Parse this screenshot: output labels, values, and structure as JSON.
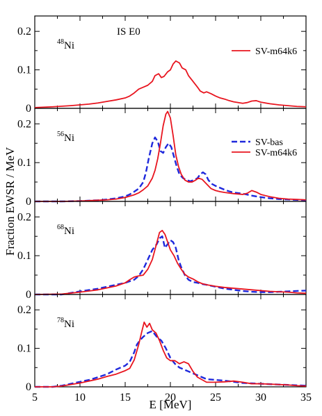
{
  "figure": {
    "ylabel": "Fraction EWSR / MeV",
    "xlabel": "E [MeV]",
    "x_ticks": [
      "5",
      "10",
      "15",
      "20",
      "25",
      "30",
      "35"
    ],
    "y_ticks": [
      "0",
      "0.1",
      "0.2"
    ],
    "annotation": "IS E0"
  },
  "chart_data": [
    {
      "type": "line",
      "nucleus": {
        "mass": "48",
        "element": "Ni"
      },
      "xlim": [
        5,
        35
      ],
      "ylim": [
        0,
        0.24
      ],
      "legend_placement": "top-right",
      "series": [
        {
          "name": "SV-m64k6",
          "color": "#e8141e",
          "style": "solid",
          "legend": true,
          "x": [
            5,
            7,
            9,
            10,
            11,
            12,
            13,
            14,
            15,
            15.5,
            16,
            16.5,
            17,
            17.5,
            18,
            18.3,
            18.7,
            19,
            19.3,
            19.7,
            20,
            20.3,
            20.6,
            21,
            21.3,
            21.7,
            22,
            22.5,
            23,
            23.3,
            23.7,
            24,
            24.5,
            25,
            25.5,
            26,
            26.5,
            27,
            28,
            28.5,
            29,
            29.5,
            30,
            31,
            32,
            33,
            34,
            35
          ],
          "y": [
            0.002,
            0.004,
            0.007,
            0.009,
            0.011,
            0.014,
            0.018,
            0.022,
            0.027,
            0.032,
            0.04,
            0.05,
            0.055,
            0.06,
            0.07,
            0.085,
            0.09,
            0.08,
            0.083,
            0.095,
            0.1,
            0.115,
            0.123,
            0.118,
            0.105,
            0.1,
            0.085,
            0.07,
            0.055,
            0.045,
            0.04,
            0.043,
            0.038,
            0.032,
            0.027,
            0.024,
            0.02,
            0.017,
            0.013,
            0.015,
            0.019,
            0.02,
            0.016,
            0.012,
            0.009,
            0.007,
            0.005,
            0.004
          ]
        }
      ]
    },
    {
      "type": "line",
      "nucleus": {
        "mass": "56",
        "element": "Ni"
      },
      "xlim": [
        5,
        35
      ],
      "ylim": [
        0,
        0.24
      ],
      "legend_placement": "right",
      "series": [
        {
          "name": "SV-bas",
          "color": "#1e28dc",
          "style": "dashed",
          "legend": true,
          "x": [
            5,
            8,
            10,
            12,
            13,
            14,
            15,
            15.5,
            16,
            16.5,
            17,
            17.3,
            17.6,
            18,
            18.3,
            18.6,
            18.9,
            19.2,
            19.5,
            19.8,
            20.1,
            20.4,
            20.7,
            21,
            21.4,
            21.8,
            22.2,
            22.6,
            23,
            23.3,
            23.6,
            23.9,
            24.2,
            24.6,
            25,
            25.5,
            26,
            26.5,
            27,
            28,
            29,
            30,
            31,
            32,
            33,
            34,
            35
          ],
          "y": [
            0,
            0,
            0.001,
            0.003,
            0.005,
            0.008,
            0.013,
            0.018,
            0.025,
            0.033,
            0.05,
            0.075,
            0.11,
            0.15,
            0.165,
            0.155,
            0.13,
            0.125,
            0.14,
            0.15,
            0.14,
            0.115,
            0.09,
            0.07,
            0.06,
            0.055,
            0.052,
            0.055,
            0.06,
            0.07,
            0.075,
            0.07,
            0.055,
            0.045,
            0.04,
            0.035,
            0.03,
            0.026,
            0.023,
            0.02,
            0.015,
            0.011,
            0.008,
            0.006,
            0.005,
            0.004,
            0.003
          ]
        },
        {
          "name": "SV-m64k6",
          "color": "#e8141e",
          "style": "solid",
          "legend": true,
          "x": [
            5,
            8,
            10,
            12,
            13,
            14,
            15,
            16,
            16.5,
            17,
            17.5,
            18,
            18.3,
            18.6,
            18.9,
            19.2,
            19.5,
            19.7,
            20,
            20.3,
            20.6,
            20.9,
            21.2,
            21.6,
            22,
            22.4,
            22.8,
            23.1,
            23.5,
            24,
            24.5,
            25,
            25.5,
            26,
            27,
            28,
            28.5,
            29,
            29.5,
            30,
            31,
            32,
            33,
            34,
            35
          ],
          "y": [
            0,
            0,
            0.001,
            0.003,
            0.004,
            0.006,
            0.01,
            0.017,
            0.022,
            0.03,
            0.04,
            0.06,
            0.08,
            0.11,
            0.15,
            0.195,
            0.225,
            0.232,
            0.215,
            0.17,
            0.12,
            0.09,
            0.07,
            0.055,
            0.05,
            0.05,
            0.055,
            0.06,
            0.057,
            0.045,
            0.033,
            0.028,
            0.025,
            0.023,
            0.02,
            0.018,
            0.021,
            0.028,
            0.024,
            0.018,
            0.012,
            0.008,
            0.006,
            0.005,
            0.004
          ]
        }
      ]
    },
    {
      "type": "line",
      "nucleus": {
        "mass": "68",
        "element": "Ni"
      },
      "xlim": [
        5,
        35
      ],
      "ylim": [
        0,
        0.24
      ],
      "series": [
        {
          "name": "SV-bas",
          "color": "#1e28dc",
          "style": "dashed",
          "legend": false,
          "x": [
            5,
            8,
            10,
            12,
            13,
            14,
            15,
            16,
            16.5,
            17,
            17.5,
            18,
            18.5,
            18.8,
            19.1,
            19.4,
            19.7,
            20,
            20.3,
            20.6,
            20.9,
            21.2,
            21.6,
            22,
            22.5,
            23,
            23.5,
            24,
            25,
            26,
            27,
            28,
            29,
            30,
            31,
            32,
            33,
            34,
            35
          ],
          "y": [
            0,
            0,
            0.008,
            0.015,
            0.02,
            0.025,
            0.03,
            0.038,
            0.048,
            0.065,
            0.09,
            0.115,
            0.13,
            0.145,
            0.15,
            0.12,
            0.13,
            0.14,
            0.135,
            0.12,
            0.09,
            0.07,
            0.05,
            0.038,
            0.032,
            0.03,
            0.027,
            0.025,
            0.02,
            0.015,
            0.012,
            0.009,
            0.007,
            0.006,
            0.006,
            0.007,
            0.008,
            0.009,
            0.01
          ]
        },
        {
          "name": "SV-m64k6",
          "color": "#e8141e",
          "style": "solid",
          "legend": false,
          "x": [
            5,
            8,
            10,
            12,
            13,
            14,
            15,
            15.5,
            16,
            16.5,
            17,
            17.5,
            18,
            18.4,
            18.8,
            19.1,
            19.4,
            19.7,
            20,
            20.4,
            20.8,
            21.2,
            21.6,
            22,
            22.5,
            23,
            23.5,
            24,
            25,
            26,
            27,
            28,
            29,
            30,
            31,
            32,
            33,
            34,
            35
          ],
          "y": [
            0,
            0.001,
            0.006,
            0.012,
            0.017,
            0.022,
            0.03,
            0.038,
            0.045,
            0.048,
            0.05,
            0.065,
            0.09,
            0.125,
            0.16,
            0.165,
            0.155,
            0.135,
            0.115,
            0.1,
            0.08,
            0.065,
            0.052,
            0.045,
            0.04,
            0.033,
            0.028,
            0.025,
            0.021,
            0.018,
            0.016,
            0.014,
            0.012,
            0.01,
            0.008,
            0.007,
            0.006,
            0.004,
            0.003
          ]
        }
      ]
    },
    {
      "type": "line",
      "nucleus": {
        "mass": "78",
        "element": "Ni"
      },
      "xlim": [
        5,
        35
      ],
      "ylim": [
        0,
        0.24
      ],
      "series": [
        {
          "name": "SV-bas",
          "color": "#1e28dc",
          "style": "dashed",
          "legend": false,
          "x": [
            5,
            7,
            8,
            9,
            10,
            11,
            12,
            13,
            14,
            14.5,
            15,
            15.5,
            16,
            16.3,
            16.6,
            17,
            17.5,
            18,
            18.5,
            19,
            19.5,
            20,
            20.5,
            21,
            21.5,
            22,
            22.5,
            23,
            24,
            25,
            26,
            27,
            28,
            29,
            30,
            31,
            32,
            33,
            34,
            35
          ],
          "y": [
            0,
            0,
            0.003,
            0.008,
            0.013,
            0.018,
            0.025,
            0.033,
            0.045,
            0.05,
            0.055,
            0.065,
            0.09,
            0.11,
            0.12,
            0.13,
            0.14,
            0.145,
            0.13,
            0.12,
            0.1,
            0.075,
            0.06,
            0.05,
            0.045,
            0.04,
            0.035,
            0.03,
            0.02,
            0.018,
            0.016,
            0.013,
            0.01,
            0.009,
            0.008,
            0.007,
            0.006,
            0.005,
            0.004,
            0.003
          ]
        },
        {
          "name": "SV-m64k6",
          "color": "#e8141e",
          "style": "solid",
          "legend": false,
          "x": [
            5,
            7,
            8,
            9,
            10,
            11,
            12,
            13,
            14,
            15,
            15.5,
            16,
            16.5,
            16.8,
            17.1,
            17.4,
            17.7,
            18,
            18.4,
            18.8,
            19.2,
            19.6,
            20,
            20.5,
            21,
            21.5,
            22,
            22.5,
            23,
            24,
            25,
            26,
            27,
            28,
            29,
            30,
            31,
            32,
            33,
            34,
            35
          ],
          "y": [
            0,
            0,
            0.002,
            0.006,
            0.01,
            0.015,
            0.02,
            0.027,
            0.033,
            0.042,
            0.048,
            0.07,
            0.11,
            0.14,
            0.168,
            0.155,
            0.165,
            0.148,
            0.14,
            0.12,
            0.095,
            0.075,
            0.068,
            0.068,
            0.06,
            0.065,
            0.06,
            0.04,
            0.025,
            0.012,
            0.012,
            0.013,
            0.015,
            0.012,
            0.008,
            0.008,
            0.007,
            0.006,
            0.005,
            0.003,
            0.002
          ]
        }
      ]
    }
  ]
}
